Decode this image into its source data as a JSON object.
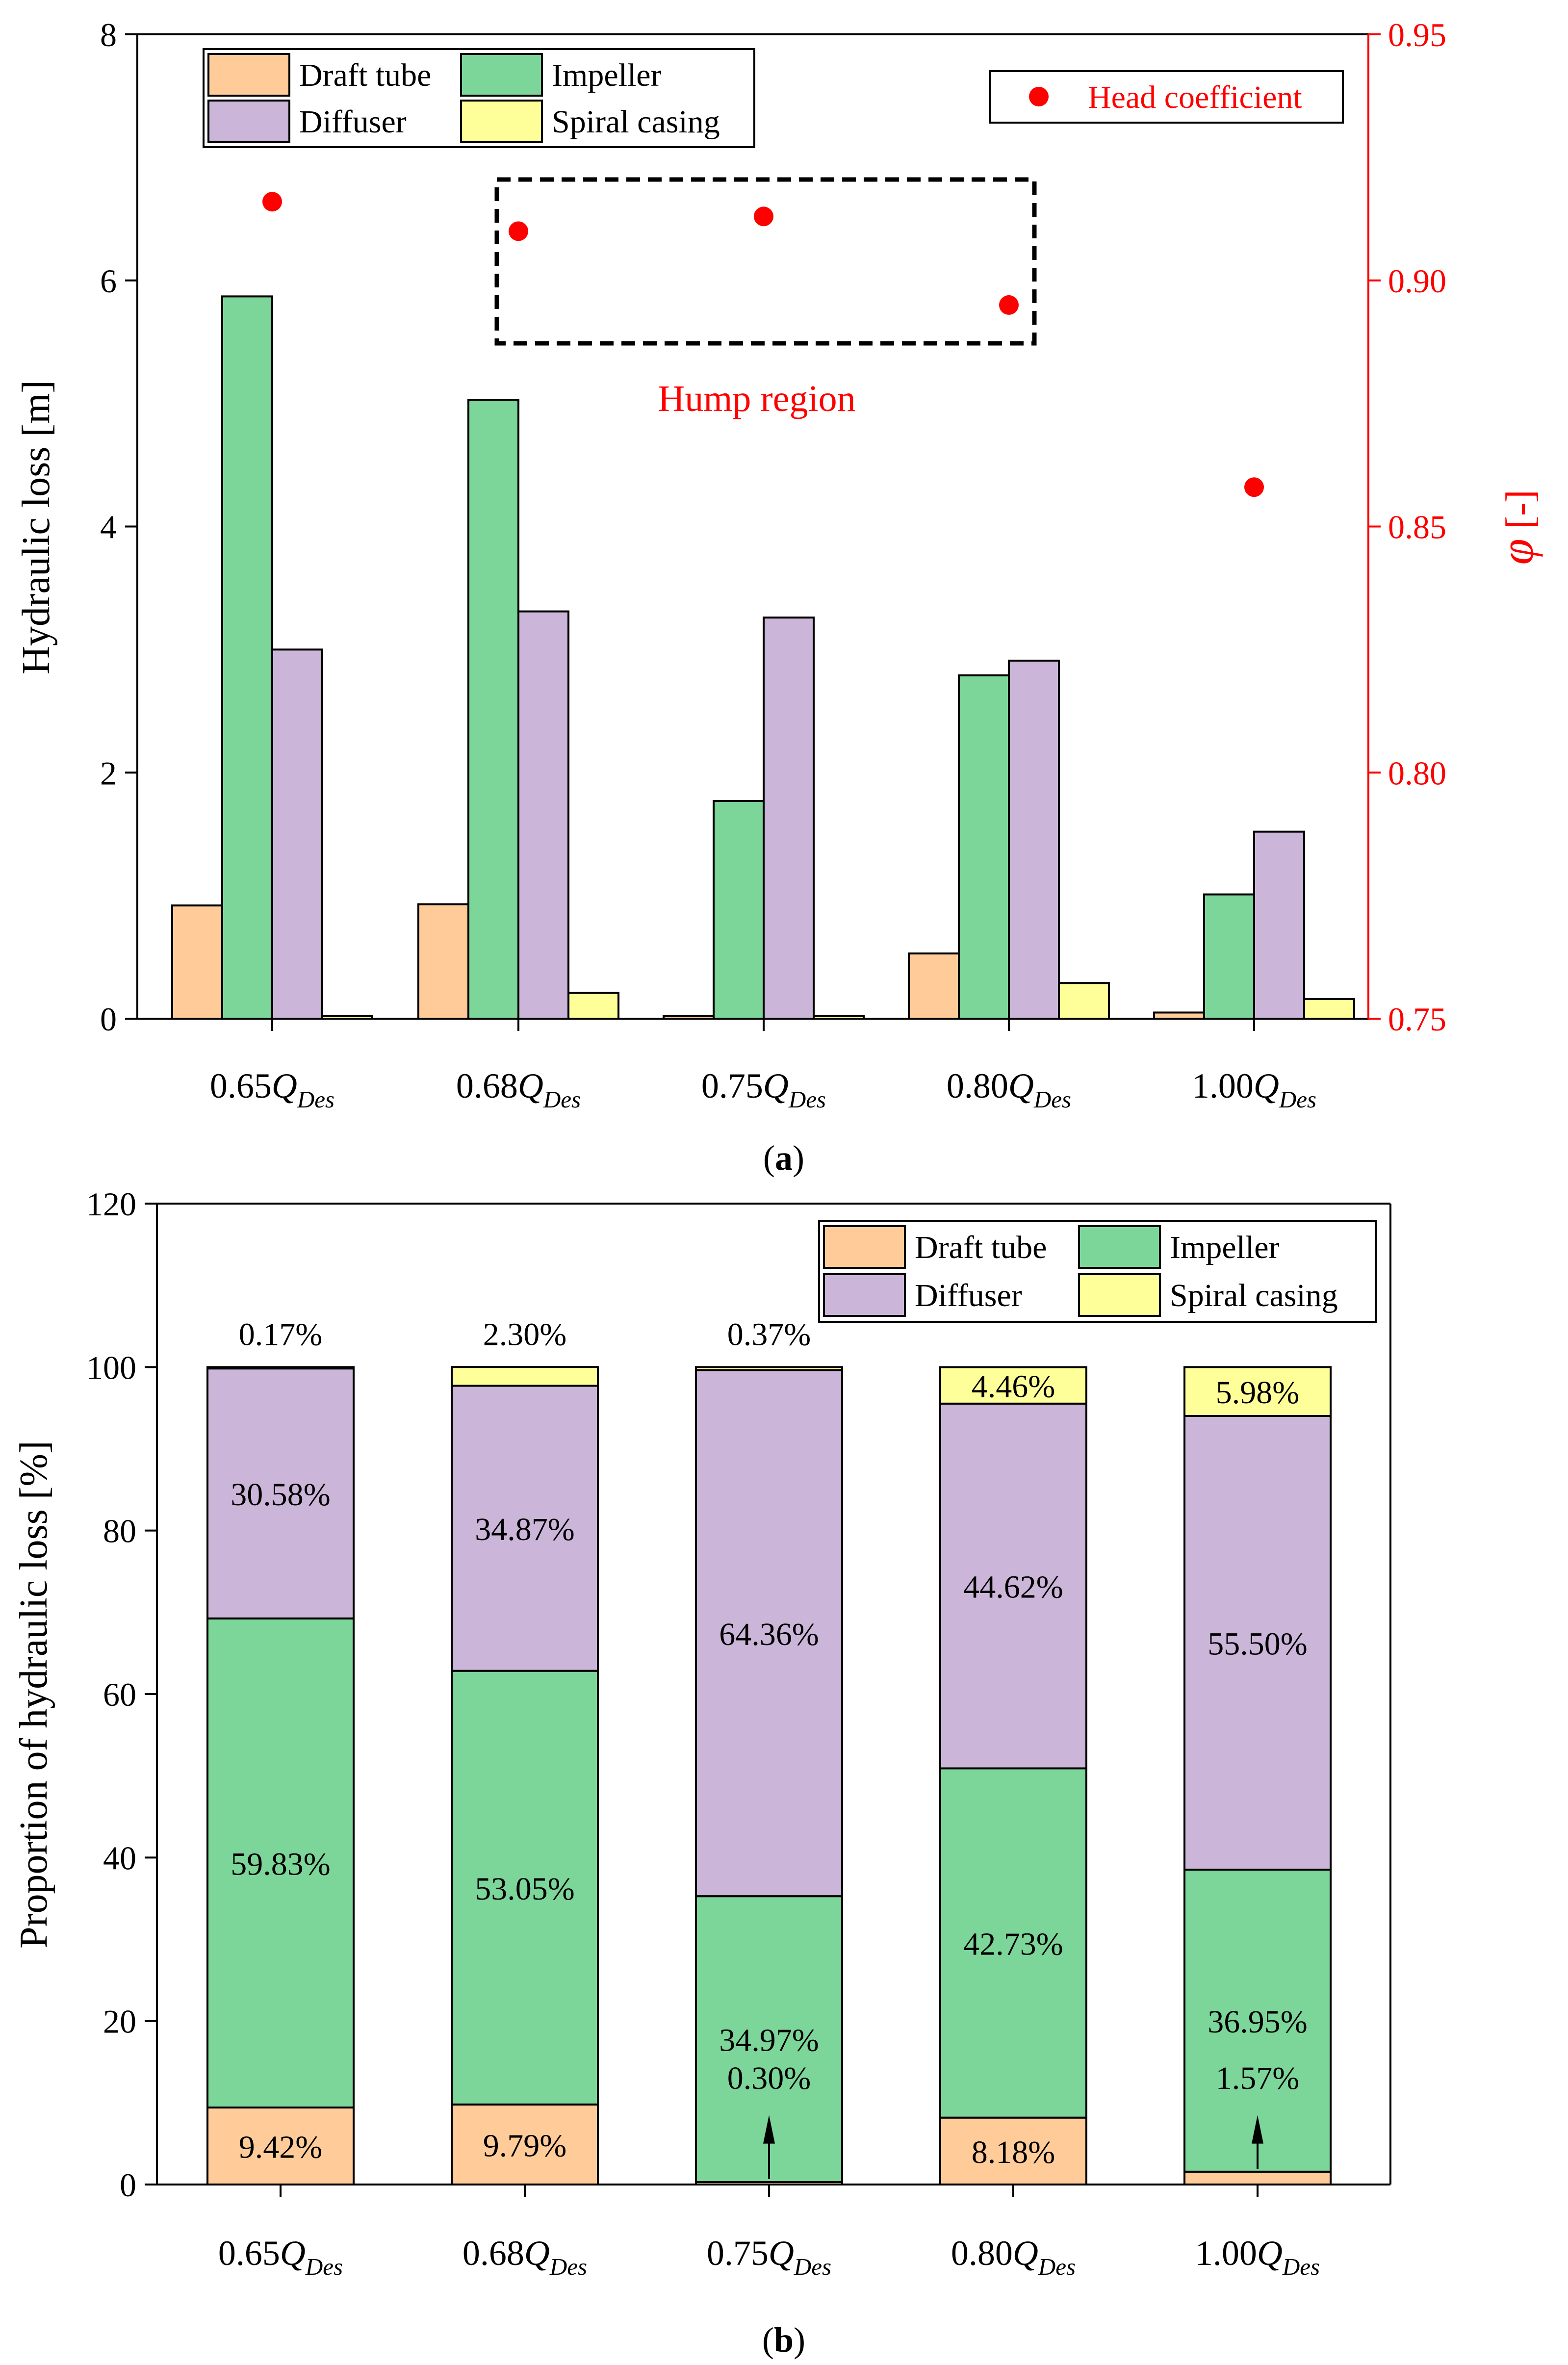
{
  "chart_data": [
    {
      "panel_label": "a",
      "type": "bar",
      "categories": [
        "0.65",
        "0.68",
        "0.75",
        "0.80",
        "1.00"
      ],
      "category_subscript_symbol": "Q",
      "category_subscript": "Des",
      "xlabel": "",
      "ylabel": "Hydraulic loss [m]",
      "ylim": [
        0,
        8
      ],
      "yticks": [
        "0",
        "2",
        "4",
        "6",
        "8"
      ],
      "series": [
        {
          "name": "Draft tube",
          "color": "#FFCC99",
          "values": [
            0.92,
            0.93,
            0.02,
            0.53,
            0.05
          ]
        },
        {
          "name": "Impeller",
          "color": "#7DD699",
          "values": [
            5.87,
            5.03,
            1.77,
            2.79,
            1.01
          ]
        },
        {
          "name": "Diffuser",
          "color": "#CBB5D9",
          "values": [
            3.0,
            3.31,
            3.26,
            2.91,
            1.52
          ]
        },
        {
          "name": "Spiral casing",
          "color": "#FFFF99",
          "values": [
            0.02,
            0.21,
            0.02,
            0.29,
            0.16
          ]
        }
      ],
      "secondary_axis": {
        "label_symbol": "φ",
        "label_unit": " [-]",
        "color": "#FF0000",
        "ylim": [
          0.75,
          0.95
        ],
        "yticks": [
          "0.75",
          "0.80",
          "0.85",
          "0.90",
          "0.95"
        ],
        "series": {
          "name": "Head coefficient",
          "values": [
            0.916,
            0.91,
            0.913,
            0.895,
            0.858
          ]
        }
      },
      "annotation": "Hump region",
      "legend_position": "top-left"
    },
    {
      "panel_label": "b",
      "type": "bar",
      "stacked": true,
      "categories": [
        "0.65",
        "0.68",
        "0.75",
        "0.80",
        "1.00"
      ],
      "category_subscript_symbol": "Q",
      "category_subscript": "Des",
      "xlabel": "",
      "ylabel": "Proportion of hydraulic loss [%]",
      "ylim": [
        0,
        120
      ],
      "yticks": [
        "0",
        "20",
        "40",
        "60",
        "80",
        "100",
        "120"
      ],
      "series": [
        {
          "name": "Draft tube",
          "color": "#FFCC99",
          "values": [
            9.42,
            9.79,
            0.3,
            8.18,
            1.57
          ],
          "labels": [
            "9.42%",
            "9.79%",
            "0.30%",
            "8.18%",
            "1.57%"
          ]
        },
        {
          "name": "Impeller",
          "color": "#7DD699",
          "values": [
            59.83,
            53.05,
            34.97,
            42.73,
            36.95
          ],
          "labels": [
            "59.83%",
            "53.05%",
            "34.97%",
            "42.73%",
            "36.95%"
          ]
        },
        {
          "name": "Diffuser",
          "color": "#CBB5D9",
          "values": [
            30.58,
            34.87,
            64.36,
            44.62,
            55.5
          ],
          "labels": [
            "30.58%",
            "34.87%",
            "64.36%",
            "44.62%",
            "55.50%"
          ]
        },
        {
          "name": "Spiral casing",
          "color": "#FFFF99",
          "values": [
            0.17,
            2.3,
            0.37,
            4.46,
            5.98
          ],
          "labels": [
            "0.17%",
            "2.30%",
            "0.37%",
            "4.46%",
            "5.98%"
          ]
        }
      ],
      "legend_position": "top-right"
    }
  ]
}
